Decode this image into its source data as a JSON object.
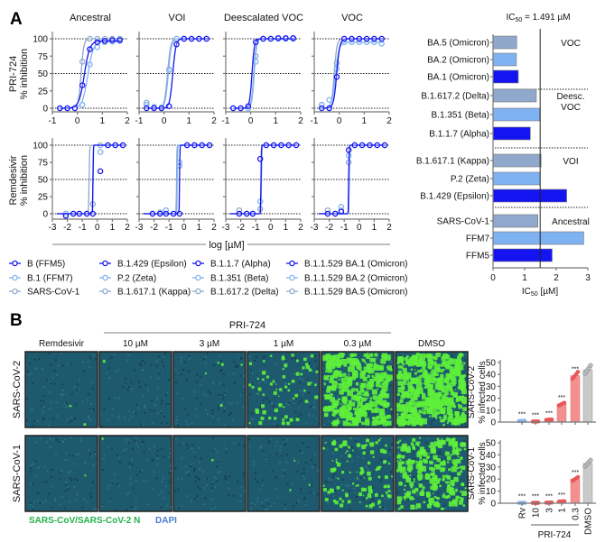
{
  "panel_labels": {
    "a": "A",
    "b": "B"
  },
  "colors": {
    "dark": "#1414f0",
    "light": "#7fb2f0",
    "grey": "#8fa8cc",
    "rv": "#9cc3f0",
    "pri": "#f29090",
    "pri_dot": "#e85858",
    "dmso": "#c9c9c9",
    "green_label": "#22b24c",
    "dapi_label": "#4a7fd0"
  },
  "curve_rows": [
    {
      "drug_label": "PRI-724",
      "ylabel": "% inhibition",
      "xlim": [
        -1,
        2
      ],
      "xticks": [
        "-1",
        "0",
        "1",
        "2"
      ]
    },
    {
      "drug_label": "Remdesivir",
      "ylabel": "% inhibition",
      "xlim": [
        -3,
        2
      ],
      "xticks": [
        "-3",
        "-2",
        "-1",
        "0",
        "1",
        "2"
      ]
    }
  ],
  "yticks": [
    "0",
    "25",
    "50",
    "75",
    "100"
  ],
  "xlabel": "log [µM]",
  "chart_data": [
    {
      "type": "line",
      "title": "dose-response",
      "columns": [
        "Ancestral",
        "VOI",
        "Deescalated VOC",
        "VOC"
      ],
      "x_top": [
        -0.7,
        -0.4,
        -0.1,
        0.2,
        0.5,
        0.8,
        1.1,
        1.4,
        1.7
      ],
      "x_bottom": [
        -2.1,
        -1.6,
        -1.2,
        -0.7,
        -0.3,
        0.2,
        0.7,
        1.2,
        1.7
      ],
      "ylim": [
        0,
        100
      ],
      "panels": [
        [
          [
            {
              "c": "dark",
              "logEC50": 0.28,
              "hill": 4,
              "top": 97,
              "y": [
                0,
                0,
                0,
                33,
                85,
                95,
                97,
                98,
                98
              ]
            },
            {
              "c": "light",
              "logEC50": 0.42,
              "hill": 4,
              "top": 96,
              "y": [
                0,
                0,
                0,
                5,
                63,
                88,
                95,
                96,
                97
              ]
            },
            {
              "c": "grey",
              "logEC50": 0.15,
              "hill": 8,
              "top": 100,
              "y": [
                0,
                0,
                0,
                67,
                100,
                100,
                100,
                100,
                100
              ]
            }
          ],
          [
            {
              "c": "dark",
              "logEC50": 0.35,
              "hill": 7,
              "top": 100,
              "y": [
                0,
                0,
                0,
                3,
                92,
                100,
                100,
                100,
                100
              ]
            },
            {
              "c": "light",
              "logEC50": 0.17,
              "hill": 7,
              "top": 100,
              "y": [
                5,
                1,
                1,
                55,
                100,
                100,
                100,
                100,
                100
              ]
            },
            {
              "c": "grey",
              "logEC50": 0.14,
              "hill": 7,
              "top": 100,
              "y": [
                8,
                2,
                0,
                56,
                100,
                100,
                100,
                100,
                100
              ]
            }
          ],
          [
            {
              "c": "dark",
              "logEC50": 0.05,
              "hill": 9,
              "top": 100,
              "y": [
                0,
                0,
                3,
                95,
                100,
                100,
                101,
                101,
                101
              ]
            },
            {
              "c": "light",
              "logEC50": 0.14,
              "hill": 9,
              "top": 100,
              "y": [
                0,
                0,
                0,
                67,
                100,
                100,
                100,
                100,
                100
              ]
            },
            {
              "c": "grey",
              "logEC50": 0.12,
              "hill": 9,
              "top": 100,
              "y": [
                0,
                0,
                0,
                75,
                100,
                100,
                100,
                100,
                100
              ]
            }
          ],
          [
            {
              "c": "dark",
              "logEC50": -0.1,
              "hill": 7,
              "top": 100,
              "y": [
                0,
                0,
                45,
                100,
                100,
                100,
                100,
                100,
                100
              ]
            },
            {
              "c": "light",
              "logEC50": -0.15,
              "hill": 6,
              "top": 95,
              "y": [
                5,
                12,
                57,
                95,
                95,
                95,
                95,
                95,
                93
              ]
            },
            {
              "c": "grey",
              "logEC50": -0.2,
              "hill": 8,
              "top": 100,
              "y": [
                5,
                0,
                65,
                100,
                100,
                100,
                100,
                100,
                100
              ]
            }
          ]
        ],
        [
          [
            {
              "c": "dark",
              "logEC50": -0.29,
              "hill": 40,
              "top": 100,
              "y": [
                -3,
                0,
                0,
                0,
                0,
                62,
                100,
                100,
                100
              ]
            },
            {
              "c": "light",
              "logEC50": -0.3,
              "hill": 40,
              "top": 100,
              "y": [
                0,
                0,
                0,
                0,
                0,
                90,
                100,
                100,
                100
              ]
            },
            {
              "c": "grey",
              "logEC50": -0.55,
              "hill": 25,
              "top": 100,
              "y": [
                0,
                0,
                0,
                0,
                14,
                100,
                100,
                100,
                100
              ]
            }
          ],
          [
            {
              "c": "dark",
              "logEC50": -0.3,
              "hill": 40,
              "top": 100,
              "y": [
                0,
                0,
                0,
                0,
                0,
                100,
                100,
                100,
                100
              ]
            },
            {
              "c": "light",
              "logEC50": -0.45,
              "hill": 40,
              "top": 100,
              "y": [
                0,
                0,
                5,
                0,
                75,
                100,
                100,
                100,
                100
              ]
            },
            {
              "c": "grey",
              "logEC50": -0.5,
              "hill": 40,
              "top": 100,
              "y": [
                0,
                2,
                5,
                0,
                70,
                100,
                100,
                100,
                100
              ]
            }
          ],
          [
            {
              "c": "dark",
              "logEC50": -0.65,
              "hill": 40,
              "top": 100,
              "y": [
                0,
                0,
                0,
                80,
                100,
                100,
                100,
                100,
                100
              ]
            },
            {
              "c": "light",
              "logEC50": -0.63,
              "hill": 40,
              "top": 100,
              "y": [
                0,
                0,
                0,
                18,
                100,
                100,
                100,
                100,
                100
              ]
            },
            {
              "c": "grey",
              "logEC50": -0.62,
              "hill": 40,
              "top": 100,
              "y": [
                5,
                0,
                0,
                7,
                100,
                100,
                100,
                100,
                100
              ]
            }
          ],
          [
            {
              "c": "dark",
              "logEC50": -0.7,
              "hill": 40,
              "top": 100,
              "y": [
                0,
                0,
                3,
                93,
                100,
                100,
                100,
                100,
                100
              ]
            },
            {
              "c": "light",
              "logEC50": -0.68,
              "hill": 40,
              "top": 100,
              "y": [
                0,
                0,
                10,
                85,
                100,
                100,
                100,
                100,
                100
              ]
            },
            {
              "c": "grey",
              "logEC50": -0.66,
              "hill": 40,
              "top": 100,
              "y": [
                5,
                0,
                5,
                75,
                100,
                100,
                100,
                100,
                100
              ]
            }
          ]
        ]
      ]
    },
    {
      "type": "bar",
      "orientation": "horizontal",
      "title_prefix": "IC",
      "title_sub": "50",
      "title_suffix": " = 1.491 µM",
      "reference_line": 1.491,
      "xlabel_prefix": "IC",
      "xlabel_sub": "50",
      "xlabel_suffix": " [µM]",
      "xlim": [
        0,
        3
      ],
      "xticks": [
        "0",
        "1",
        "2",
        "3"
      ],
      "groups": [
        {
          "label": "VOC",
          "label2": "",
          "bars": [
            {
              "name": "BA.5 (Omicron)",
              "value": 0.75,
              "c": "grey"
            },
            {
              "name": "BA.2 (Omicron)",
              "value": 0.74,
              "c": "light"
            },
            {
              "name": "BA.1 (Omicron)",
              "value": 0.8,
              "c": "dark"
            }
          ]
        },
        {
          "label": "Deesc.",
          "label2": "VOC",
          "bars": [
            {
              "name": "B.1.617.2 (Delta)",
              "value": 1.37,
              "c": "grey"
            },
            {
              "name": "B.1.351 (Beta)",
              "value": 1.48,
              "c": "light"
            },
            {
              "name": "B.1.1.7 (Alpha)",
              "value": 1.18,
              "c": "dark"
            }
          ]
        },
        {
          "label": "VOI",
          "label2": "",
          "bars": [
            {
              "name": "B.1.617.1 (Kappa)",
              "value": 1.52,
              "c": "grey"
            },
            {
              "name": "P.2 (Zeta)",
              "value": 1.49,
              "c": "light"
            },
            {
              "name": "B.1.429 (Epsilon)",
              "value": 2.33,
              "c": "dark"
            }
          ]
        },
        {
          "label": "Ancestral",
          "label2": "",
          "bars": [
            {
              "name": "SARS-CoV-1",
              "value": 1.42,
              "c": "grey"
            },
            {
              "name": "FFM7",
              "value": 2.87,
              "c": "light"
            },
            {
              "name": "FFM5",
              "value": 1.87,
              "c": "dark"
            }
          ]
        }
      ]
    },
    {
      "type": "bar",
      "categories": [
        "Rv",
        "10",
        "3",
        "1",
        "0.3",
        "DMSO"
      ],
      "group_label": "PRI-724",
      "ylim": [
        0,
        50
      ],
      "yticks": [
        "0",
        "10",
        "20",
        "30",
        "40",
        "50"
      ],
      "significance": [
        "***",
        "***",
        "***",
        "***",
        "***",
        ""
      ],
      "series": [
        {
          "row": "SARS-CoV-2",
          "ylabel": "% infected cells",
          "values": [
            1,
            0.5,
            2,
            15,
            39,
            44
          ]
        },
        {
          "row": "SARS-CoV-1",
          "ylabel": "% infected cells",
          "values": [
            0.3,
            0.3,
            0.5,
            1.5,
            20,
            33
          ]
        }
      ]
    }
  ],
  "legend": [
    {
      "label": "B (FFM5)",
      "c": "dark"
    },
    {
      "label": "B.1 (FFM7)",
      "c": "light"
    },
    {
      "label": "SARS-CoV-1",
      "c": "grey"
    },
    {
      "label": "B.1.429 (Epsilon)",
      "c": "dark"
    },
    {
      "label": "P.2 (Zeta)",
      "c": "light"
    },
    {
      "label": "B.1.617.1 (Kappa)",
      "c": "grey"
    },
    {
      "label": "B.1.1.7 (Alpha)",
      "c": "dark"
    },
    {
      "label": "B.1.351 (Beta)",
      "c": "light"
    },
    {
      "label": "B.1.617.2 (Delta)",
      "c": "grey"
    },
    {
      "label": "B.1.1.529 BA.1 (Omicron)",
      "c": "dark"
    },
    {
      "label": "B.1.1.529 BA.2 (Omicron)",
      "c": "light"
    },
    {
      "label": "B.1.1.529 BA.5 (Omicron)",
      "c": "grey"
    }
  ],
  "micro": {
    "group_label": "PRI-724",
    "columns": [
      "Remdesivir",
      "10 µM",
      "3 µM",
      "1 µM",
      "0.3 µM",
      "DMSO"
    ],
    "rows": [
      "SARS-CoV-2",
      "SARS-CoV-1"
    ],
    "stain_n": "SARS-CoV/SARS-CoV-2 N",
    "stain_dapi": "DAPI"
  }
}
